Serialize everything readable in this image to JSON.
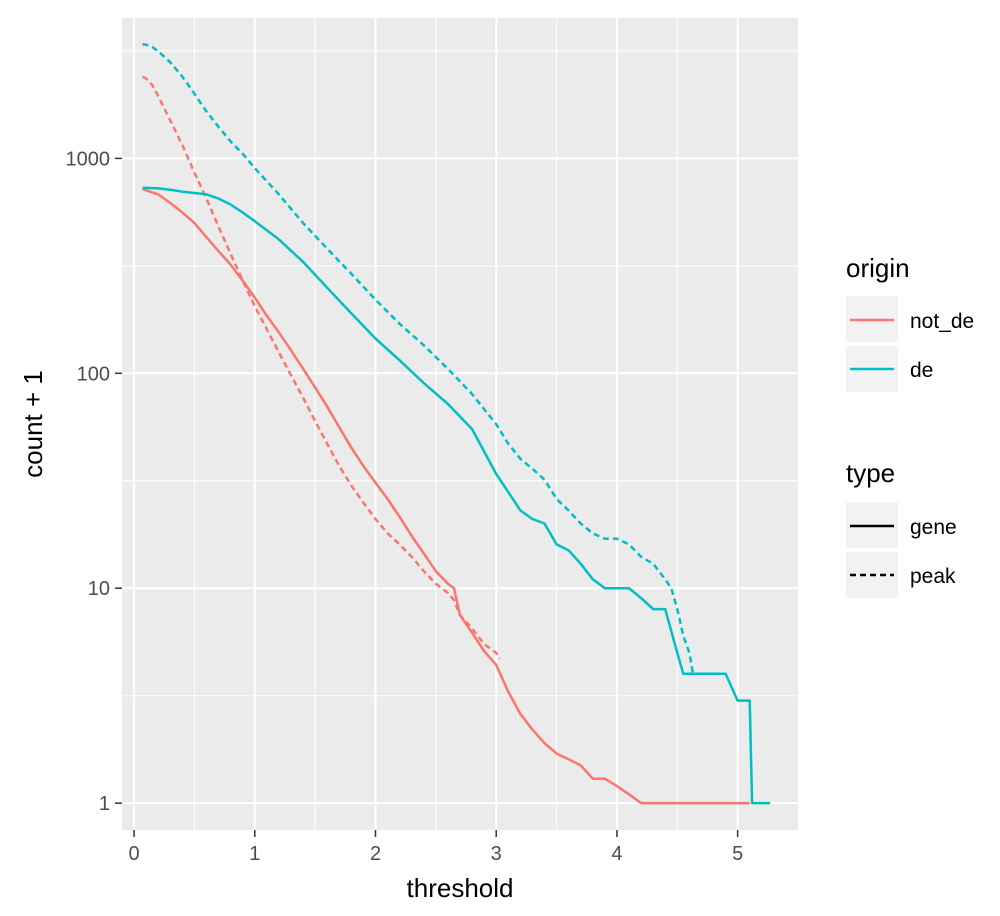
{
  "chart_data": {
    "type": "line",
    "xlabel": "threshold",
    "ylabel": "count + 1",
    "xlim": [
      -0.1,
      5.5
    ],
    "ylim": [
      0.75,
      4500
    ],
    "y_scale": "log10",
    "x_ticks": [
      0,
      1,
      2,
      3,
      4,
      5
    ],
    "x_tick_labels": [
      "0",
      "1",
      "2",
      "3",
      "4",
      "5"
    ],
    "y_ticks": [
      1,
      10,
      100,
      1000
    ],
    "y_tick_labels": [
      "1",
      "10",
      "100",
      "1000"
    ],
    "grid": true,
    "legend_position": "right",
    "legends": [
      {
        "title": "origin",
        "entries": [
          {
            "label": "not_de",
            "color": "#F8766D"
          },
          {
            "label": "de",
            "color": "#00BFC4"
          }
        ]
      },
      {
        "title": "type",
        "entries": [
          {
            "label": "gene",
            "linetype": "solid"
          },
          {
            "label": "peak",
            "linetype": "dashed"
          }
        ]
      }
    ],
    "series": [
      {
        "origin": "not_de",
        "type": "peak",
        "color": "#F8766D",
        "dash": true,
        "x": [
          0.07,
          0.1,
          0.15,
          0.2,
          0.3,
          0.4,
          0.5,
          0.6,
          0.7,
          0.8,
          0.9,
          1.0,
          1.1,
          1.2,
          1.3,
          1.4,
          1.5,
          1.6,
          1.7,
          1.8,
          1.9,
          2.0,
          2.1,
          2.2,
          2.3,
          2.4,
          2.5,
          2.6,
          2.65,
          2.7,
          2.8,
          2.9,
          3.0,
          3.03
        ],
        "y": [
          2400,
          2350,
          2200,
          1950,
          1500,
          1150,
          860,
          650,
          480,
          360,
          270,
          205,
          160,
          125,
          98,
          77,
          60,
          47,
          37,
          30,
          25,
          21,
          18,
          16,
          14,
          12,
          10.5,
          9.5,
          8.8,
          7.5,
          6.5,
          5.5,
          5.0,
          4.7
        ]
      },
      {
        "origin": "de",
        "type": "peak",
        "color": "#00BFC4",
        "dash": true,
        "x": [
          0.07,
          0.1,
          0.15,
          0.2,
          0.3,
          0.4,
          0.5,
          0.6,
          0.7,
          0.8,
          0.9,
          1.0,
          1.2,
          1.4,
          1.6,
          1.8,
          2.0,
          2.2,
          2.4,
          2.6,
          2.8,
          3.0,
          3.1,
          3.2,
          3.3,
          3.4,
          3.5,
          3.6,
          3.7,
          3.8,
          3.9,
          4.0,
          4.1,
          4.2,
          4.3,
          4.4,
          4.45,
          4.5,
          4.55,
          4.6,
          4.63
        ],
        "y": [
          3400,
          3380,
          3300,
          3150,
          2800,
          2400,
          2000,
          1650,
          1400,
          1200,
          1050,
          900,
          680,
          500,
          380,
          290,
          220,
          170,
          135,
          105,
          80,
          58,
          47,
          40,
          36,
          32,
          26,
          23,
          20,
          18,
          17,
          17,
          16,
          14,
          13,
          11,
          10,
          8,
          6,
          5,
          4
        ]
      },
      {
        "origin": "not_de",
        "type": "gene",
        "color": "#F8766D",
        "dash": false,
        "x": [
          0.07,
          0.2,
          0.3,
          0.4,
          0.5,
          0.6,
          0.7,
          0.8,
          0.9,
          1.0,
          1.1,
          1.2,
          1.3,
          1.4,
          1.5,
          1.6,
          1.7,
          1.8,
          1.9,
          2.0,
          2.1,
          2.2,
          2.3,
          2.4,
          2.5,
          2.6,
          2.65,
          2.7,
          2.8,
          2.9,
          3.0,
          3.1,
          3.2,
          3.3,
          3.4,
          3.5,
          3.6,
          3.7,
          3.8,
          3.9,
          4.0,
          4.1,
          4.2,
          4.5,
          5.1
        ],
        "y": [
          720,
          680,
          620,
          560,
          500,
          430,
          370,
          320,
          270,
          225,
          185,
          155,
          128,
          105,
          86,
          70,
          56,
          45,
          37,
          31,
          26,
          21.5,
          17.5,
          14.5,
          12,
          10.5,
          10,
          7.5,
          6.2,
          5.1,
          4.4,
          3.3,
          2.6,
          2.2,
          1.9,
          1.7,
          1.6,
          1.5,
          1.3,
          1.3,
          1.2,
          1.1,
          1.0,
          1.0,
          1.0
        ]
      },
      {
        "origin": "de",
        "type": "gene",
        "color": "#00BFC4",
        "dash": false,
        "x": [
          0.07,
          0.2,
          0.3,
          0.4,
          0.5,
          0.6,
          0.7,
          0.8,
          0.9,
          1.0,
          1.2,
          1.4,
          1.6,
          1.8,
          2.0,
          2.2,
          2.4,
          2.6,
          2.8,
          3.0,
          3.1,
          3.2,
          3.3,
          3.4,
          3.5,
          3.6,
          3.7,
          3.8,
          3.9,
          4.0,
          4.1,
          4.2,
          4.3,
          4.4,
          4.5,
          4.55,
          4.6,
          4.7,
          4.8,
          4.9,
          5.0,
          5.1,
          5.12,
          5.2,
          5.27
        ],
        "y": [
          730,
          725,
          715,
          700,
          690,
          680,
          650,
          610,
          560,
          510,
          420,
          330,
          250,
          190,
          145,
          115,
          90,
          72,
          55,
          34,
          28,
          23,
          21,
          20,
          16,
          15,
          13,
          11,
          10,
          10,
          10,
          9,
          8,
          8,
          5,
          4,
          4,
          4,
          4,
          4,
          3,
          3,
          1,
          1,
          1
        ]
      }
    ]
  }
}
